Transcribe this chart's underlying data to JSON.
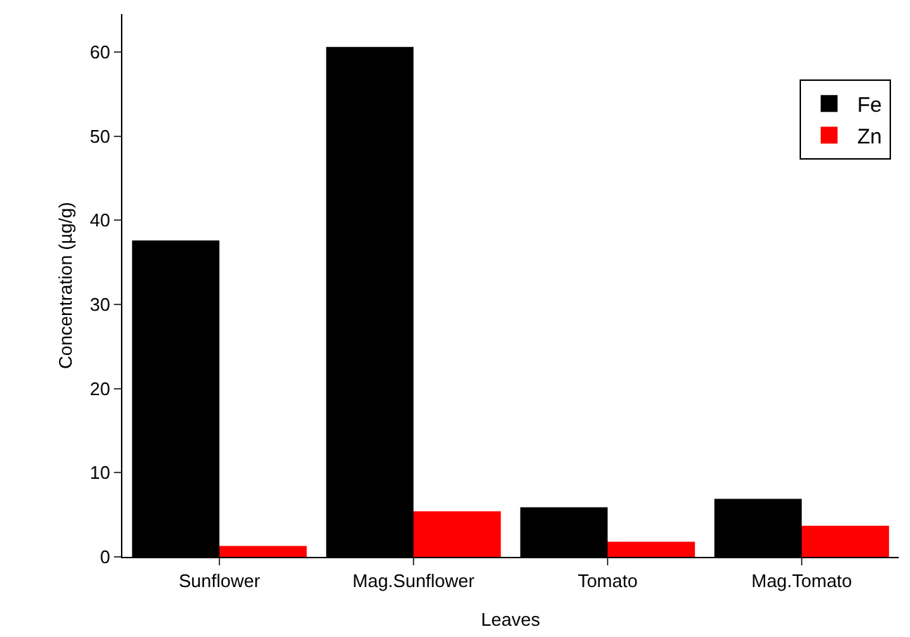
{
  "chart_data": {
    "type": "bar",
    "xlabel": "Leaves",
    "ylabel": "Concentration (µg/g)",
    "categories": [
      "Sunflower",
      "Mag.Sunflower",
      "Tomato",
      "Mag.Tomato"
    ],
    "series": [
      {
        "name": "Fe",
        "color": "#000000",
        "values": [
          37.6,
          60.6,
          5.9,
          6.9
        ]
      },
      {
        "name": "Zn",
        "color": "#ff0000",
        "values": [
          1.3,
          5.4,
          1.8,
          3.7
        ]
      }
    ],
    "ylim": [
      0,
      64.5
    ],
    "yticks": [
      0,
      10,
      20,
      30,
      40,
      50,
      60
    ],
    "grid": false,
    "legend": "top right"
  }
}
